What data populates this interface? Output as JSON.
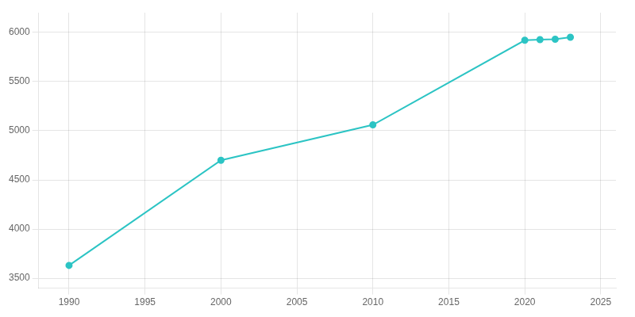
{
  "chart_data": {
    "type": "line",
    "x": [
      1990,
      2000,
      2010,
      2020,
      2021,
      2022,
      2023
    ],
    "values": [
      3631,
      4700,
      5060,
      5920,
      5926,
      5930,
      5950
    ],
    "color": "#2CC4C4",
    "marker": "circle",
    "xlim": [
      1988,
      2026
    ],
    "xticks": [
      1990,
      1995,
      2000,
      2005,
      2010,
      2015,
      2020,
      2025
    ],
    "ylim": [
      3400,
      6200
    ],
    "yticks": [
      3500,
      4000,
      4500,
      5000,
      5500,
      6000
    ],
    "grid": true
  }
}
